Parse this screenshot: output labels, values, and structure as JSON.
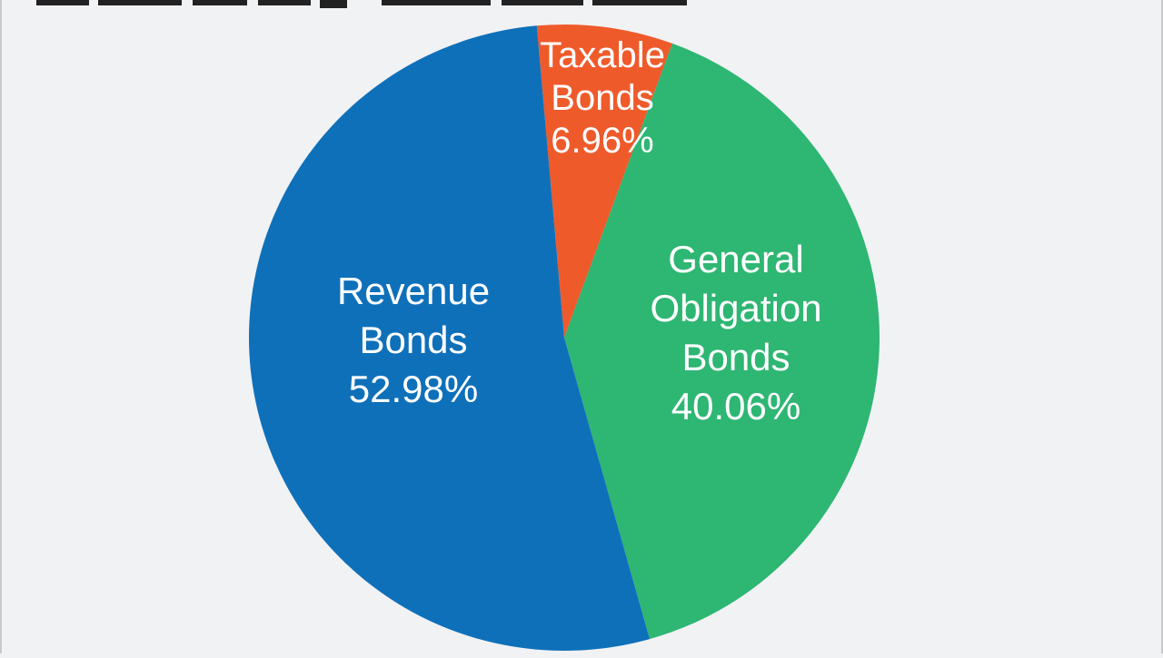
{
  "chart_data": {
    "type": "pie",
    "title": "",
    "slices": [
      {
        "label": "Taxable Bonds",
        "lines": [
          "Taxable",
          "Bonds",
          "6.96%"
        ],
        "value": 6.96,
        "color": "#ef5a2b"
      },
      {
        "label": "General Obligation Bonds",
        "lines": [
          "General",
          "Obligation",
          "Bonds",
          "40.06%"
        ],
        "value": 40.06,
        "color": "#2eb673"
      },
      {
        "label": "Revenue Bonds",
        "lines": [
          "Revenue",
          "Bonds",
          "52.98%"
        ],
        "value": 52.98,
        "color": "#0f70ba"
      }
    ],
    "start_angle_deg": -5,
    "direction": "clockwise",
    "label_color": "#ffffff"
  },
  "colors": {
    "background": "#f1f2f4",
    "frame": "#c9cacc",
    "clipped_title": "#222222"
  }
}
